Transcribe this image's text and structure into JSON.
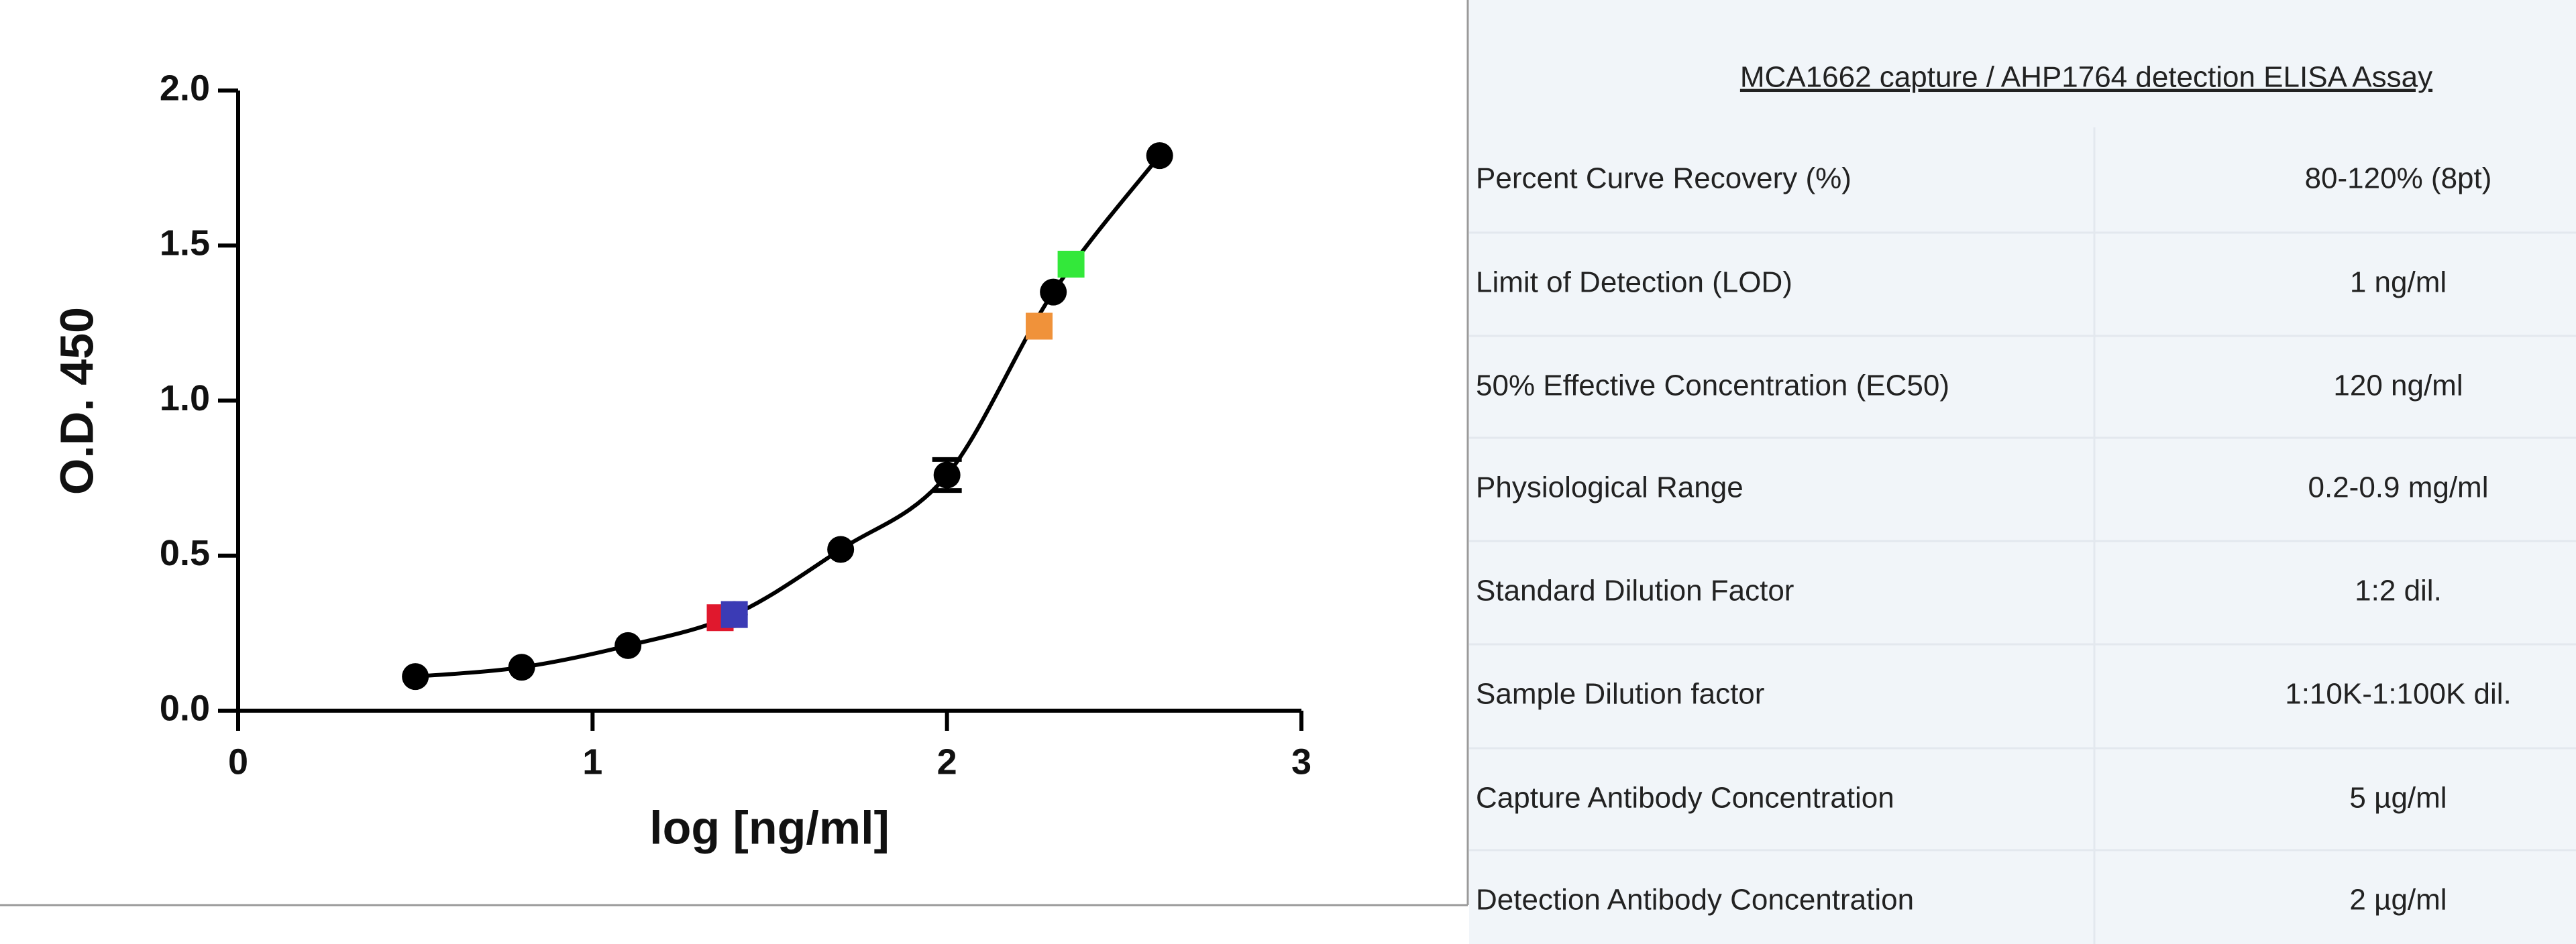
{
  "chart_data": {
    "type": "scatter",
    "xlabel": "log [ng/ml]",
    "ylabel": "O.D. 450",
    "xlim": [
      0,
      3
    ],
    "xticks": [
      0,
      1,
      2,
      3
    ],
    "ylim": [
      0,
      2.0
    ],
    "yticks": [
      {
        "value": 0,
        "label": "0.0"
      },
      {
        "value": 0.5,
        "label": "0.5"
      },
      {
        "value": 1.0,
        "label": "1.0"
      },
      {
        "value": 1.5,
        "label": "1.5"
      },
      {
        "value": 2.0,
        "label": "2.0"
      }
    ],
    "series": [
      {
        "color": "#000000",
        "marker": "circle",
        "fit_curve": true,
        "x": [
          0.5,
          0.8,
          1.1,
          1.4,
          1.7,
          2.0,
          2.3,
          2.6
        ],
        "values": [
          0.11,
          0.14,
          0.21,
          0.31,
          0.52,
          0.76,
          1.35,
          1.79
        ],
        "errors": [
          null,
          null,
          null,
          null,
          null,
          0.05,
          null,
          null
        ]
      },
      {
        "marker": "square",
        "colors": [
          "#e0182d",
          "#3b3bb5",
          "#f0923a",
          "#33e83a"
        ],
        "x": [
          1.36,
          1.4,
          2.26,
          2.35
        ],
        "values": [
          0.3,
          0.31,
          1.24,
          1.44
        ]
      }
    ]
  },
  "table": {
    "title": "MCA1662 capture / AHP1764 detection ELISA Assay",
    "rows": [
      [
        "Percent Curve Recovery (%)",
        "80-120% (8pt)"
      ],
      [
        "Limit of Detection (LOD)",
        "1 ng/ml"
      ],
      [
        "50% Effective Concentration (EC50)",
        "120 ng/ml"
      ],
      [
        "Physiological Range",
        "0.2-0.9 mg/ml"
      ],
      [
        "Standard Dilution Factor",
        "1:2 dil."
      ],
      [
        "Sample Dilution factor",
        "1:10K-1:100K dil."
      ],
      [
        "Capture Antibody Concentration",
        "5 µg/ml"
      ],
      [
        "Detection Antibody Concentration",
        "2 µg/ml"
      ]
    ]
  }
}
